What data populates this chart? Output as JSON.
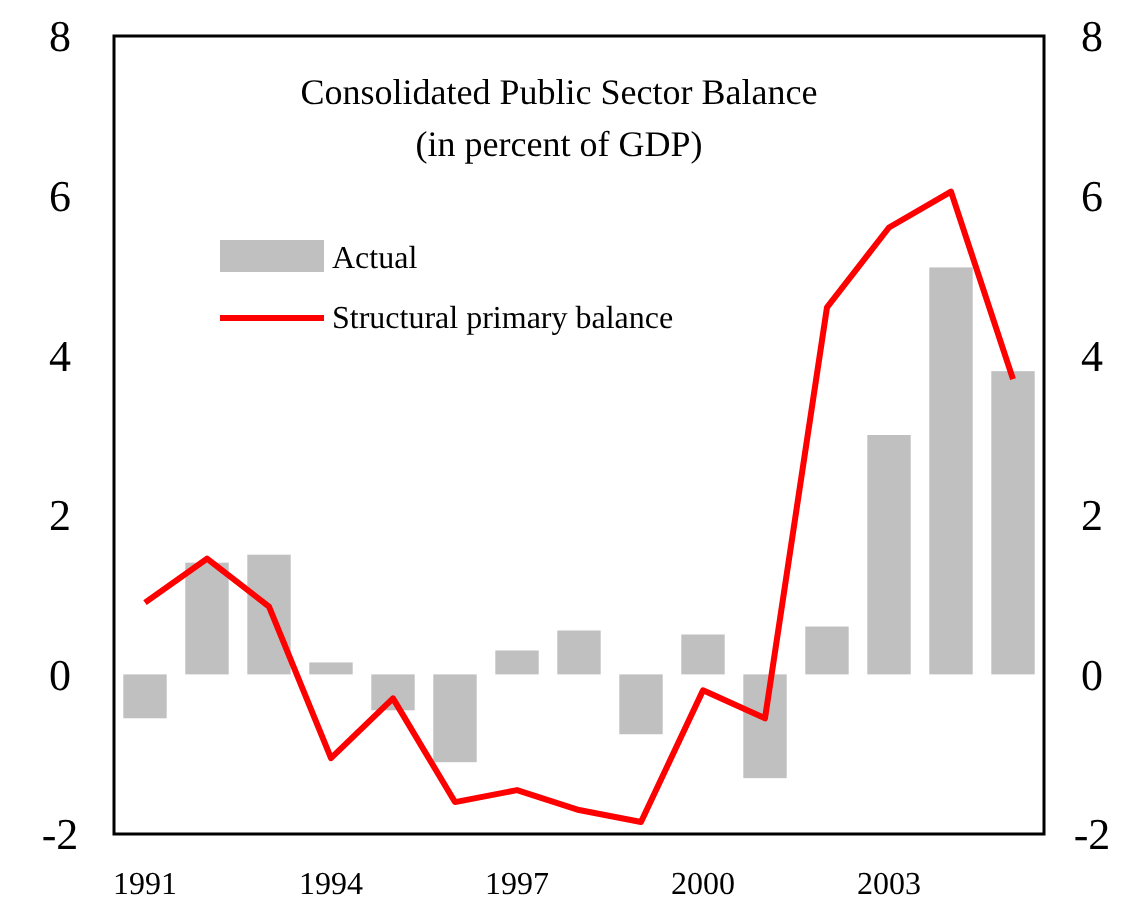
{
  "chart_data": {
    "type": "bar",
    "title": "Consolidated Public Sector Balance",
    "subtitle": "(in percent of GDP)",
    "categories": [
      "1991",
      null,
      null,
      "1994",
      null,
      null,
      "1997",
      null,
      null,
      "2000",
      null,
      null,
      "2003",
      null,
      null
    ],
    "series": [
      {
        "name": "Actual",
        "color": "#c0c0c0",
        "values": [
          -0.55,
          1.4,
          1.5,
          0.15,
          -0.45,
          -1.1,
          0.3,
          0.55,
          -0.75,
          0.5,
          -1.3,
          0.6,
          3.0,
          5.1,
          3.8
        ]
      },
      {
        "name": "Structural primary balance",
        "type": "line",
        "color": "#ff0000",
        "values": [
          0.9,
          1.45,
          0.85,
          -1.05,
          -0.3,
          -1.6,
          -1.45,
          -1.7,
          -1.85,
          -0.2,
          -0.55,
          4.6,
          5.6,
          6.05,
          3.7
        ]
      }
    ],
    "ylim": [
      -2,
      8
    ],
    "yticks": [
      -2,
      0,
      2,
      4,
      6,
      8
    ],
    "y2lim": [
      -2,
      8
    ],
    "y2ticks": [
      -2,
      0,
      2,
      4,
      6,
      8
    ],
    "grid": false,
    "legend": "top left",
    "marker": "none",
    "line_style": "solid"
  }
}
